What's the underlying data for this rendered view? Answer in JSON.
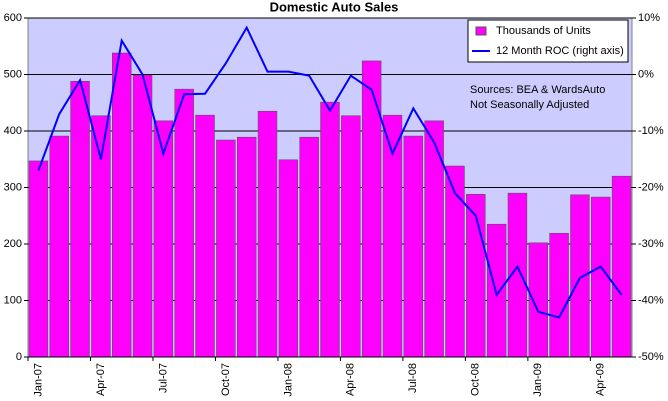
{
  "chart_data": {
    "type": "bar-line",
    "title": "Domestic Auto Sales",
    "categories": [
      "Jan-07",
      null,
      null,
      "Apr-07",
      null,
      null,
      "Jul-07",
      null,
      null,
      "Oct-07",
      null,
      null,
      "Jan-08",
      null,
      null,
      "Apr-08",
      null,
      null,
      "Jul-08",
      null,
      null,
      "Oct-08",
      null,
      null,
      "Jan-09",
      null,
      null,
      "Apr-09",
      null
    ],
    "series": [
      {
        "name": "Thousands of Units",
        "color": "#ff00ff",
        "type": "bar",
        "values": [
          347,
          391,
          488,
          427,
          538,
          499,
          418,
          474,
          428,
          384,
          389,
          435,
          349,
          389,
          451,
          427,
          524,
          428,
          391,
          418,
          338,
          288,
          235,
          290,
          202,
          219,
          287,
          283,
          320
        ]
      },
      {
        "name": "12 Month ROC (right axis)",
        "color": "#0000ff",
        "type": "line",
        "axis": "y2",
        "values": [
          -17,
          -7,
          -1,
          -15,
          6,
          0,
          -14,
          -3.5,
          -3.4,
          2,
          8.3,
          0.5,
          0.5,
          -0.2,
          -6.4,
          -0.2,
          -2.7,
          -14,
          -6,
          -12,
          -21,
          -25,
          -39,
          -34,
          -42,
          -43,
          -36,
          -34,
          -39
        ]
      }
    ],
    "ylim": [
      0,
      600
    ],
    "yticks": [
      0,
      100,
      200,
      300,
      400,
      500,
      600
    ],
    "y2lim": [
      -50,
      10
    ],
    "y2ticks": [
      {
        "value": -50,
        "label": "-50%"
      },
      {
        "value": -40,
        "label": "-40%"
      },
      {
        "value": -30,
        "label": "-30%"
      },
      {
        "value": -20,
        "label": "-20%"
      },
      {
        "value": -10,
        "label": "-10%"
      },
      {
        "value": 0,
        "label": "0%"
      },
      {
        "value": 10,
        "label": "10%"
      }
    ],
    "grid": true,
    "legend": "upper right",
    "annotations": [
      "Sources: BEA & WardsAuto",
      "Not Seasonally Adjusted"
    ]
  }
}
